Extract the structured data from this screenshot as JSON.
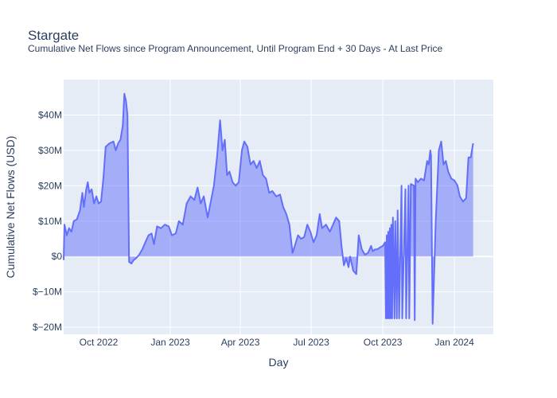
{
  "chart_data": {
    "type": "area",
    "title": "Stargate",
    "subtitle": "Cumulative Net Flows since Program Announcement, Until Program End + 30 Days - At Last Price",
    "xlabel": "Day",
    "ylabel": "Cumulative Net Flows (USD)",
    "x_range": [
      "2022-08-17",
      "2024-02-20"
    ],
    "ylim": [
      -22,
      50
    ],
    "x_ticks": [
      {
        "date": "2022-10-01",
        "label": "Oct 2022"
      },
      {
        "date": "2023-01-01",
        "label": "Jan 2023"
      },
      {
        "date": "2023-04-01",
        "label": "Apr 2023"
      },
      {
        "date": "2023-07-01",
        "label": "Jul 2023"
      },
      {
        "date": "2023-10-01",
        "label": "Oct 2023"
      },
      {
        "date": "2024-01-01",
        "label": "Jan 2024"
      }
    ],
    "y_ticks": [
      {
        "value": -20,
        "label": "$−20M"
      },
      {
        "value": -10,
        "label": "$−10M"
      },
      {
        "value": 0,
        "label": "$0"
      },
      {
        "value": 10,
        "label": "$10M"
      },
      {
        "value": 20,
        "label": "$20M"
      },
      {
        "value": 30,
        "label": "$30M"
      },
      {
        "value": 40,
        "label": "$40M"
      }
    ],
    "grid": true,
    "colors": {
      "line": "#636efa",
      "fill": "rgba(99,110,250,0.5)",
      "plot_bg": "#e5ecf6",
      "grid": "#ffffff"
    },
    "series": [
      {
        "unit": "USD millions",
        "points": [
          [
            "2022-08-17",
            -1
          ],
          [
            "2022-08-18",
            9
          ],
          [
            "2022-08-21",
            6
          ],
          [
            "2022-08-24",
            8
          ],
          [
            "2022-08-27",
            7
          ],
          [
            "2022-08-30",
            10
          ],
          [
            "2022-09-03",
            10.5
          ],
          [
            "2022-09-07",
            13
          ],
          [
            "2022-09-10",
            18
          ],
          [
            "2022-09-12",
            14
          ],
          [
            "2022-09-15",
            19
          ],
          [
            "2022-09-17",
            21
          ],
          [
            "2022-09-19",
            18
          ],
          [
            "2022-09-22",
            19
          ],
          [
            "2022-09-25",
            15
          ],
          [
            "2022-09-28",
            17
          ],
          [
            "2022-10-01",
            15
          ],
          [
            "2022-10-04",
            15.5
          ],
          [
            "2022-10-07",
            22
          ],
          [
            "2022-10-10",
            31
          ],
          [
            "2022-10-15",
            32
          ],
          [
            "2022-10-20",
            32.5
          ],
          [
            "2022-10-23",
            30
          ],
          [
            "2022-10-26",
            32
          ],
          [
            "2022-10-29",
            33
          ],
          [
            "2022-11-01",
            37
          ],
          [
            "2022-11-03",
            46
          ],
          [
            "2022-11-05",
            44
          ],
          [
            "2022-11-07",
            40
          ],
          [
            "2022-11-09",
            -1.5
          ],
          [
            "2022-11-12",
            -2
          ],
          [
            "2022-11-15",
            -1
          ],
          [
            "2022-11-18",
            -0.5
          ],
          [
            "2022-11-22",
            0.5
          ],
          [
            "2022-11-26",
            2
          ],
          [
            "2022-11-30",
            4
          ],
          [
            "2022-12-04",
            6
          ],
          [
            "2022-12-08",
            6.5
          ],
          [
            "2022-12-11",
            3.5
          ],
          [
            "2022-12-15",
            8.5
          ],
          [
            "2022-12-20",
            8
          ],
          [
            "2022-12-25",
            9
          ],
          [
            "2022-12-30",
            8.5
          ],
          [
            "2023-01-03",
            6
          ],
          [
            "2023-01-08",
            6.5
          ],
          [
            "2023-01-12",
            10
          ],
          [
            "2023-01-17",
            9
          ],
          [
            "2023-01-22",
            15
          ],
          [
            "2023-01-27",
            17
          ],
          [
            "2023-02-01",
            16
          ],
          [
            "2023-02-05",
            19.5
          ],
          [
            "2023-02-09",
            15
          ],
          [
            "2023-02-13",
            17
          ],
          [
            "2023-02-18",
            11
          ],
          [
            "2023-02-22",
            15.5
          ],
          [
            "2023-02-26",
            20
          ],
          [
            "2023-03-02",
            28
          ],
          [
            "2023-03-06",
            38.5
          ],
          [
            "2023-03-09",
            30
          ],
          [
            "2023-03-12",
            33
          ],
          [
            "2023-03-15",
            23
          ],
          [
            "2023-03-18",
            24
          ],
          [
            "2023-03-22",
            21
          ],
          [
            "2023-03-26",
            20
          ],
          [
            "2023-03-30",
            21
          ],
          [
            "2023-04-03",
            30
          ],
          [
            "2023-04-06",
            32.5
          ],
          [
            "2023-04-10",
            31
          ],
          [
            "2023-04-14",
            26
          ],
          [
            "2023-04-18",
            27
          ],
          [
            "2023-04-22",
            25
          ],
          [
            "2023-04-26",
            27
          ],
          [
            "2023-04-30",
            23
          ],
          [
            "2023-05-04",
            22
          ],
          [
            "2023-05-08",
            18
          ],
          [
            "2023-05-12",
            18.5
          ],
          [
            "2023-05-17",
            17
          ],
          [
            "2023-05-22",
            17.5
          ],
          [
            "2023-05-26",
            14
          ],
          [
            "2023-05-30",
            12
          ],
          [
            "2023-06-03",
            9
          ],
          [
            "2023-06-07",
            1
          ],
          [
            "2023-06-10",
            3
          ],
          [
            "2023-06-14",
            6
          ],
          [
            "2023-06-18",
            5
          ],
          [
            "2023-06-22",
            5.5
          ],
          [
            "2023-06-26",
            9
          ],
          [
            "2023-06-30",
            7
          ],
          [
            "2023-07-04",
            4
          ],
          [
            "2023-07-08",
            6
          ],
          [
            "2023-07-12",
            12
          ],
          [
            "2023-07-15",
            8
          ],
          [
            "2023-07-20",
            9
          ],
          [
            "2023-07-25",
            7
          ],
          [
            "2023-07-29",
            9
          ],
          [
            "2023-08-02",
            11
          ],
          [
            "2023-08-06",
            10
          ],
          [
            "2023-08-09",
            3
          ],
          [
            "2023-08-12",
            -2.5
          ],
          [
            "2023-08-15",
            -0.5
          ],
          [
            "2023-08-18",
            -3
          ],
          [
            "2023-08-20",
            0
          ],
          [
            "2023-08-24",
            -4
          ],
          [
            "2023-08-28",
            -5
          ],
          [
            "2023-08-31",
            6
          ],
          [
            "2023-09-04",
            2
          ],
          [
            "2023-09-08",
            0.5
          ],
          [
            "2023-09-12",
            1
          ],
          [
            "2023-09-16",
            3
          ],
          [
            "2023-09-18",
            1.5
          ],
          [
            "2023-09-21",
            2
          ],
          [
            "2023-09-24",
            2
          ],
          [
            "2023-09-27",
            2.5
          ],
          [
            "2023-10-01",
            3
          ],
          [
            "2023-10-04",
            4
          ],
          [
            "2023-10-05",
            -17.5
          ],
          [
            "2023-10-06",
            6
          ],
          [
            "2023-10-07",
            -17.5
          ],
          [
            "2023-10-08",
            7
          ],
          [
            "2023-10-09",
            -17.5
          ],
          [
            "2023-10-10",
            8
          ],
          [
            "2023-10-11",
            -17.5
          ],
          [
            "2023-10-12",
            9
          ],
          [
            "2023-10-13",
            -17.5
          ],
          [
            "2023-10-14",
            11
          ],
          [
            "2023-10-16",
            -17.5
          ],
          [
            "2023-10-17",
            10
          ],
          [
            "2023-10-19",
            -17.5
          ],
          [
            "2023-10-20",
            13
          ],
          [
            "2023-10-22",
            -17.5
          ],
          [
            "2023-10-25",
            20
          ],
          [
            "2023-10-26",
            -17.5
          ],
          [
            "2023-10-30",
            19
          ],
          [
            "2023-10-31",
            -17.5
          ],
          [
            "2023-11-03",
            20
          ],
          [
            "2023-11-04",
            -17.5
          ],
          [
            "2023-11-06",
            20.5
          ],
          [
            "2023-11-10",
            20
          ],
          [
            "2023-11-11",
            -18
          ],
          [
            "2023-11-12",
            22
          ],
          [
            "2023-11-15",
            21
          ],
          [
            "2023-11-19",
            22
          ],
          [
            "2023-11-23",
            21.5
          ],
          [
            "2023-11-27",
            27
          ],
          [
            "2023-11-29",
            26
          ],
          [
            "2023-12-01",
            30
          ],
          [
            "2023-12-02",
            28.5
          ],
          [
            "2023-12-04",
            -19
          ],
          [
            "2023-12-08",
            10
          ],
          [
            "2023-12-12",
            30
          ],
          [
            "2023-12-15",
            32.5
          ],
          [
            "2023-12-18",
            26
          ],
          [
            "2023-12-21",
            27
          ],
          [
            "2023-12-24",
            24
          ],
          [
            "2023-12-28",
            22
          ],
          [
            "2024-01-01",
            21.5
          ],
          [
            "2024-01-05",
            20
          ],
          [
            "2024-01-08",
            17
          ],
          [
            "2024-01-12",
            15.5
          ],
          [
            "2024-01-16",
            16.5
          ],
          [
            "2024-01-19",
            28
          ],
          [
            "2024-01-22",
            28
          ],
          [
            "2024-01-25",
            32
          ]
        ]
      }
    ]
  }
}
